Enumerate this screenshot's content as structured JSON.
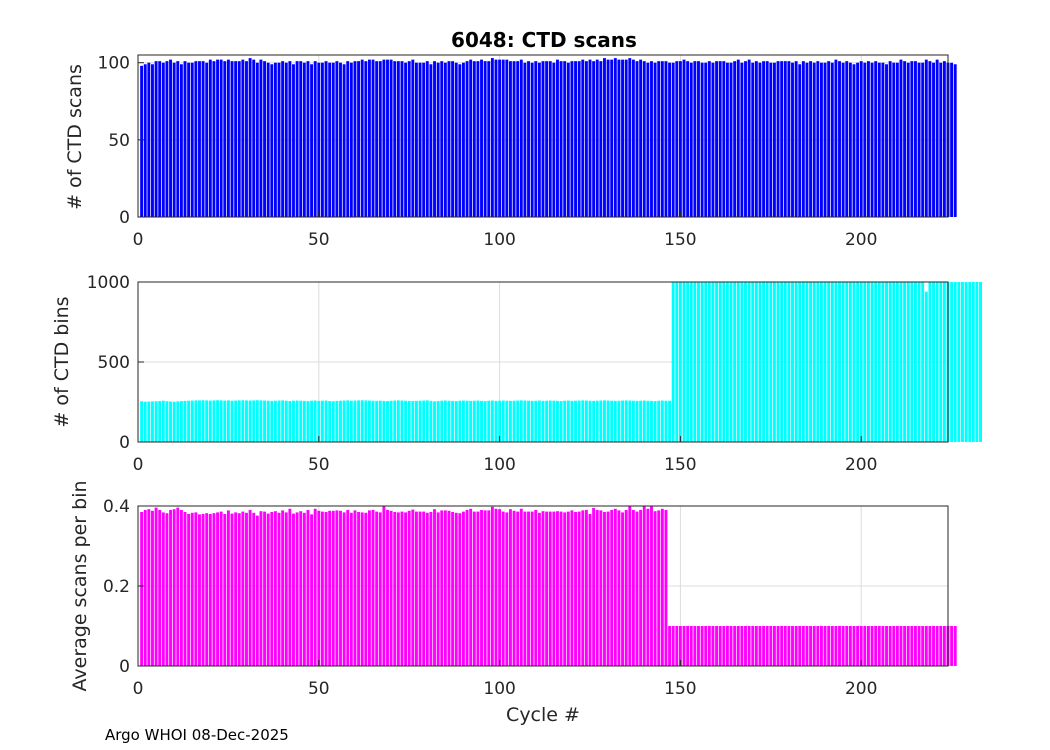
{
  "footer": "Argo WHOI 08-Dec-2025",
  "chart_data": [
    {
      "type": "bar",
      "title": "6048: CTD scans",
      "xlabel": "",
      "ylabel": "# of CTD scans",
      "xlim": [
        0,
        224
      ],
      "ylim": [
        0,
        105
      ],
      "xticks": [
        0,
        50,
        100,
        150,
        200
      ],
      "yticks": [
        0,
        50,
        100
      ],
      "grid": true,
      "color": "#0000ff",
      "x_start": 1,
      "values": [
        98,
        99,
        100,
        99,
        101,
        101,
        100,
        101,
        102,
        100,
        101,
        99,
        101,
        100,
        100,
        101,
        101,
        101,
        100,
        102,
        101,
        102,
        102,
        101,
        102,
        101,
        101,
        101,
        102,
        101,
        103,
        102,
        100,
        102,
        101,
        100,
        99,
        100,
        100,
        101,
        100,
        101,
        99,
        101,
        101,
        100,
        101,
        99,
        101,
        100,
        100,
        101,
        100,
        100,
        101,
        100,
        99,
        101,
        100,
        101,
        101,
        102,
        101,
        102,
        102,
        101,
        101,
        102,
        102,
        102,
        101,
        101,
        101,
        100,
        101,
        102,
        100,
        100,
        100,
        101,
        99,
        101,
        100,
        101,
        100,
        101,
        101,
        100,
        99,
        100,
        101,
        102,
        101,
        101,
        102,
        101,
        101,
        103,
        102,
        102,
        102,
        102,
        101,
        101,
        101,
        102,
        100,
        101,
        100,
        101,
        100,
        101,
        101,
        101,
        100,
        102,
        101,
        101,
        100,
        101,
        101,
        101,
        102,
        101,
        102,
        101,
        102,
        101,
        103,
        102,
        102,
        103,
        102,
        102,
        102,
        103,
        102,
        101,
        102,
        101,
        100,
        101,
        100,
        101,
        101,
        101,
        100,
        100,
        101,
        101,
        102,
        101,
        100,
        101,
        101,
        100,
        100,
        101,
        100,
        101,
        101,
        101,
        100,
        100,
        101,
        102,
        100,
        101,
        102,
        100,
        101,
        100,
        101,
        101,
        100,
        100,
        101,
        101,
        101,
        101,
        100,
        101,
        99,
        101,
        100,
        101,
        100,
        101,
        100,
        100,
        101,
        100,
        102,
        101,
        100,
        101,
        100,
        99,
        100,
        101,
        100,
        101,
        100,
        101,
        100,
        100,
        99,
        101,
        100,
        100,
        102,
        101,
        100,
        101,
        101,
        100,
        100,
        102,
        101,
        100,
        102,
        100,
        101,
        100,
        100,
        99
      ]
    },
    {
      "type": "bar",
      "title": "",
      "xlabel": "",
      "ylabel": "# of CTD bins",
      "xlim": [
        0,
        224
      ],
      "ylim": [
        0,
        1000
      ],
      "xticks": [
        0,
        50,
        100,
        150,
        200
      ],
      "yticks": [
        0,
        500,
        1000
      ],
      "grid": true,
      "color": "#00ffff",
      "x_start": 1,
      "values": [
        255,
        252,
        253,
        254,
        255,
        256,
        258,
        255,
        253,
        252,
        254,
        256,
        257,
        258,
        259,
        260,
        260,
        261,
        260,
        259,
        260,
        261,
        260,
        259,
        260,
        258,
        259,
        260,
        261,
        260,
        259,
        260,
        261,
        260,
        259,
        258,
        257,
        258,
        259,
        260,
        258,
        256,
        258,
        259,
        258,
        257,
        256,
        258,
        259,
        257,
        258,
        259,
        256,
        255,
        257,
        258,
        259,
        260,
        258,
        259,
        260,
        261,
        260,
        259,
        258,
        257,
        258,
        257,
        256,
        258,
        259,
        260,
        259,
        258,
        257,
        256,
        257,
        258,
        259,
        260,
        257,
        254,
        256,
        258,
        259,
        258,
        257,
        256,
        258,
        259,
        258,
        257,
        258,
        259,
        257,
        256,
        258,
        259,
        257,
        258,
        259,
        258,
        257,
        258,
        259,
        260,
        259,
        258,
        257,
        258,
        259,
        257,
        258,
        259,
        258,
        257,
        256,
        258,
        259,
        257,
        258,
        259,
        260,
        259,
        258,
        257,
        258,
        259,
        260,
        259,
        258,
        257,
        258,
        259,
        260,
        259,
        258,
        257,
        258,
        259,
        258,
        257,
        256,
        258,
        259,
        258,
        258,
        1000,
        1000,
        1000,
        1000,
        1000,
        1000,
        1000,
        1000,
        1000,
        1000,
        1000,
        1000,
        1000,
        1000,
        1000,
        1000,
        1000,
        1000,
        1000,
        1000,
        1000,
        1000,
        1000,
        1000,
        1000,
        1000,
        1000,
        1000,
        1000,
        1000,
        1000,
        1000,
        1000,
        1000,
        1000,
        1000,
        1000,
        1000,
        1000,
        1000,
        1000,
        1000,
        1000,
        1000,
        1000,
        1000,
        1000,
        1000,
        1000,
        1000,
        1000,
        1000,
        1000,
        1000,
        1000,
        1000,
        1000,
        1000,
        1000,
        1000,
        1000,
        1000,
        1000,
        1000,
        1000,
        1000,
        1000,
        1000,
        1000,
        1000,
        940,
        1000,
        1000,
        1000,
        1000,
        1000,
        1000,
        1000,
        1000,
        1000,
        1000,
        1000,
        1000,
        1000,
        1000,
        1000
      ]
    },
    {
      "type": "bar",
      "title": "",
      "xlabel": "Cycle #",
      "ylabel": "Average scans per bin",
      "xlim": [
        0,
        224
      ],
      "ylim": [
        0,
        0.4
      ],
      "xticks": [
        0,
        50,
        100,
        150,
        200
      ],
      "yticks": [
        0,
        0.2,
        0.4
      ],
      "grid": true,
      "color": "#ff00ff",
      "x_start": 1,
      "values": [
        0.385,
        0.39,
        0.392,
        0.388,
        0.396,
        0.39,
        0.384,
        0.382,
        0.39,
        0.392,
        0.396,
        0.39,
        0.385,
        0.38,
        0.383,
        0.384,
        0.379,
        0.38,
        0.382,
        0.38,
        0.382,
        0.384,
        0.386,
        0.38,
        0.389,
        0.381,
        0.384,
        0.382,
        0.386,
        0.383,
        0.39,
        0.383,
        0.376,
        0.387,
        0.386,
        0.381,
        0.385,
        0.387,
        0.383,
        0.389,
        0.384,
        0.393,
        0.381,
        0.384,
        0.387,
        0.383,
        0.39,
        0.379,
        0.393,
        0.388,
        0.386,
        0.385,
        0.388,
        0.388,
        0.389,
        0.388,
        0.384,
        0.39,
        0.383,
        0.389,
        0.385,
        0.384,
        0.383,
        0.389,
        0.39,
        0.386,
        0.384,
        0.4,
        0.39,
        0.388,
        0.385,
        0.384,
        0.386,
        0.384,
        0.388,
        0.391,
        0.386,
        0.386,
        0.386,
        0.383,
        0.385,
        0.392,
        0.384,
        0.389,
        0.389,
        0.388,
        0.385,
        0.383,
        0.382,
        0.386,
        0.39,
        0.393,
        0.386,
        0.386,
        0.39,
        0.389,
        0.389,
        0.398,
        0.393,
        0.392,
        0.386,
        0.384,
        0.392,
        0.388,
        0.386,
        0.393,
        0.386,
        0.386,
        0.386,
        0.39,
        0.383,
        0.387,
        0.386,
        0.386,
        0.386,
        0.387,
        0.386,
        0.384,
        0.386,
        0.389,
        0.385,
        0.386,
        0.389,
        0.39,
        0.38,
        0.395,
        0.39,
        0.389,
        0.385,
        0.386,
        0.39,
        0.393,
        0.389,
        0.384,
        0.39,
        0.401,
        0.39,
        0.386,
        0.39,
        0.403,
        0.393,
        0.401,
        0.387,
        0.389,
        0.393,
        0.39,
        0.1,
        0.1,
        0.1,
        0.1,
        0.1,
        0.1,
        0.1,
        0.1,
        0.1,
        0.1,
        0.1,
        0.1,
        0.1,
        0.1,
        0.1,
        0.1,
        0.1,
        0.1,
        0.1,
        0.1,
        0.1,
        0.1,
        0.1,
        0.1,
        0.1,
        0.1,
        0.1,
        0.1,
        0.1,
        0.1,
        0.1,
        0.1,
        0.1,
        0.1,
        0.1,
        0.1,
        0.1,
        0.1,
        0.1,
        0.1,
        0.1,
        0.1,
        0.1,
        0.1,
        0.1,
        0.1,
        0.1,
        0.1,
        0.1,
        0.1,
        0.1,
        0.1,
        0.1,
        0.1,
        0.1,
        0.1,
        0.1,
        0.1,
        0.1,
        0.1,
        0.1,
        0.1,
        0.1,
        0.1,
        0.1,
        0.1,
        0.1,
        0.1,
        0.1,
        0.1,
        0.1,
        0.1,
        0.1,
        0.1,
        0.1,
        0.1,
        0.1,
        0.1,
        0.1,
        0.1
      ]
    }
  ]
}
